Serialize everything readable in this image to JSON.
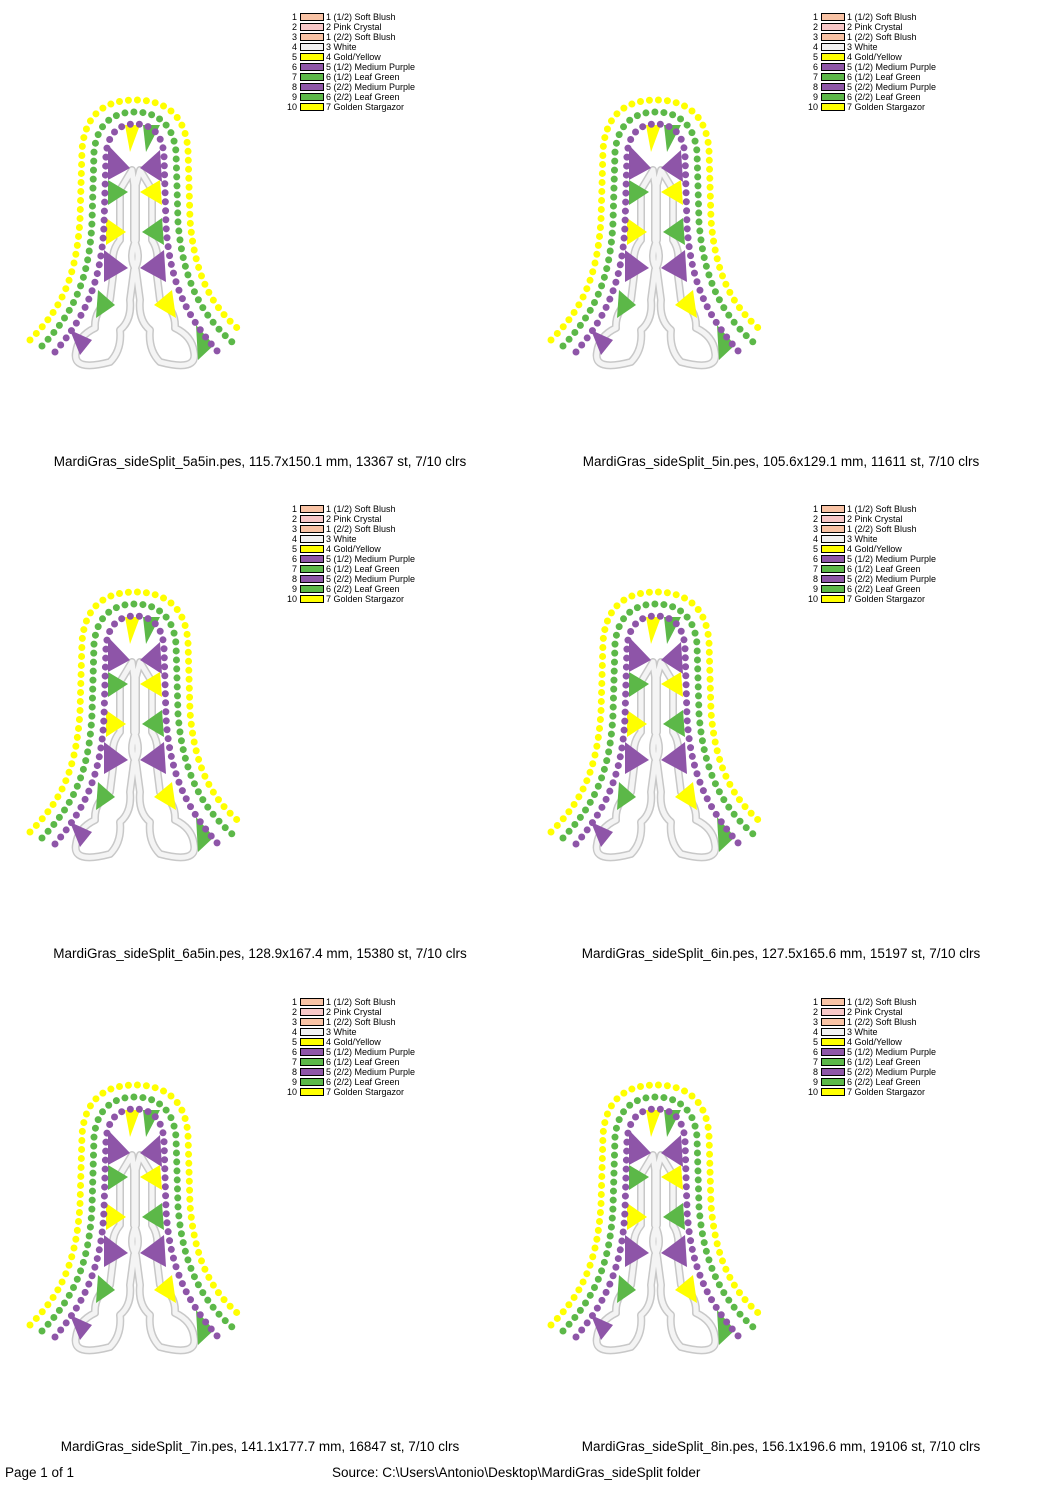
{
  "legend": [
    {
      "num": "1",
      "label": "1 (1/2) Soft Blush",
      "color": "#f9c3a5"
    },
    {
      "num": "2",
      "label": "2 Pink Crystal",
      "color": "#f8c8c8"
    },
    {
      "num": "3",
      "label": "1 (2/2) Soft Blush",
      "color": "#f9c3a5"
    },
    {
      "num": "4",
      "label": "3 White",
      "color": "#f2f2f2"
    },
    {
      "num": "5",
      "label": "4 Gold/Yellow",
      "color": "#ffff00"
    },
    {
      "num": "6",
      "label": "5 (1/2) Medium Purple",
      "color": "#8e55a8"
    },
    {
      "num": "7",
      "label": "6 (1/2) Leaf Green",
      "color": "#5cb848"
    },
    {
      "num": "8",
      "label": "5 (2/2) Medium Purple",
      "color": "#8e55a8"
    },
    {
      "num": "9",
      "label": "6 (2/2) Leaf Green",
      "color": "#5cb848"
    },
    {
      "num": "10",
      "label": "7 Golden Stargazor",
      "color": "#ffff00"
    }
  ],
  "designs": [
    {
      "caption": "MardiGras_sideSplit_5a5in.pes, 115.7x150.1 mm, 13367 st, 7/10 clrs"
    },
    {
      "caption": "MardiGras_sideSplit_5in.pes, 105.6x129.1 mm, 11611 st, 7/10 clrs"
    },
    {
      "caption": "MardiGras_sideSplit_6a5in.pes, 128.9x167.4 mm, 15380 st, 7/10 clrs"
    },
    {
      "caption": "MardiGras_sideSplit_6in.pes, 127.5x165.6 mm, 15197 st, 7/10 clrs"
    },
    {
      "caption": "MardiGras_sideSplit_7in.pes, 141.1x177.7 mm, 16847 st, 7/10 clrs"
    },
    {
      "caption": "MardiGras_sideSplit_8in.pes, 156.1x196.6 mm, 19106 st, 7/10 clrs"
    }
  ],
  "footer": {
    "page": "Page 1 of 1",
    "source": "Source: C:\\Users\\Antonio\\Desktop\\MardiGras_sideSplit folder"
  },
  "thread_colors": {
    "yellow": "#ffff00",
    "green": "#5cb848",
    "purple": "#8e55a8",
    "white": "#f0f0f0"
  }
}
